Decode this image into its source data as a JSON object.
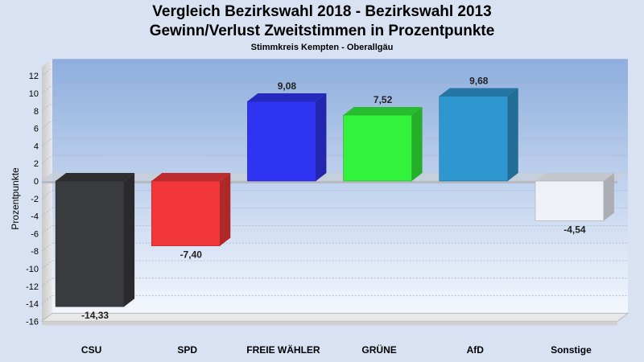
{
  "chart_data": {
    "type": "bar",
    "title": "Vergleich Bezirkswahl 2018 - Bezirkswahl 2013",
    "subtitle": "Gewinn/Verlust Zweitstimmen in Prozentpunkte",
    "subtitle2": "Stimmkreis Kempten - Oberallgäu",
    "ylabel": "Prozentpunkte",
    "xlabel": "",
    "ylim": [
      -16,
      13
    ],
    "yticks": [
      12,
      10,
      8,
      6,
      4,
      2,
      0,
      -2,
      -4,
      -6,
      -8,
      -10,
      -12,
      -14,
      -16
    ],
    "categories": [
      "CSU",
      "SPD",
      "FREIE WÄHLER",
      "GRÜNE",
      "AfD",
      "Sonstige"
    ],
    "values": [
      -14.33,
      -7.4,
      9.08,
      7.52,
      9.68,
      -4.54
    ],
    "value_labels": [
      "-14,33",
      "-7,40",
      "9,08",
      "7,52",
      "9,68",
      "-4,54"
    ],
    "colors": [
      "#3a3b3e",
      "#f2373b",
      "#2f34f2",
      "#33f23b",
      "#2f97d0",
      "#eef2f8"
    ],
    "grid": true,
    "style": "3d"
  }
}
